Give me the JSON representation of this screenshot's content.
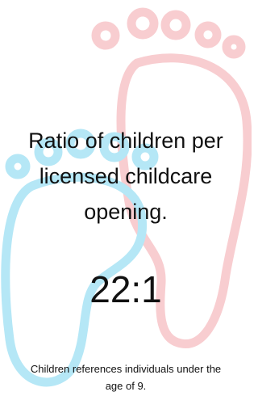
{
  "heading": "Ratio of children per licensed childcare opening.",
  "value": "22:1",
  "footnote": "Children references individuals under the age of 9."
}
